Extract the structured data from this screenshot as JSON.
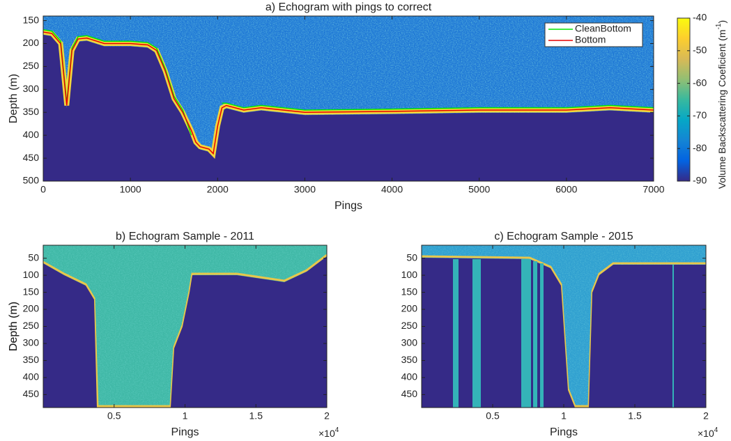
{
  "chart_data": [
    {
      "type": "line",
      "title": "a) Echogram with pings to correct",
      "xlabel": "Pings",
      "ylabel": "Depth (m)",
      "xlim": [
        0,
        7000
      ],
      "xticks": [
        0,
        1000,
        2000,
        3000,
        4000,
        5000,
        6000,
        7000
      ],
      "ylim": [
        140,
        500
      ],
      "yticks": [
        150,
        200,
        250,
        300,
        350,
        400,
        450,
        500
      ],
      "legend": "upper right",
      "x": [
        0,
        100,
        200,
        270,
        330,
        400,
        500,
        700,
        1000,
        1200,
        1300,
        1400,
        1500,
        1600,
        1700,
        1750,
        1800,
        1900,
        1950,
        2000,
        2050,
        2100,
        2300,
        2500,
        3000,
        4000,
        5000,
        6000,
        6500,
        7000
      ],
      "series": [
        {
          "name": "CleanBottom",
          "color": "#00e600",
          "values": [
            170,
            173,
            195,
            330,
            210,
            185,
            183,
            195,
            195,
            198,
            210,
            255,
            315,
            345,
            400,
            null,
            null,
            null,
            null,
            null,
            330,
            330,
            340,
            335,
            345,
            343,
            340,
            340,
            335,
            340
          ]
        },
        {
          "name": "Bottom",
          "color": "#e60000",
          "values": [
            175,
            178,
            200,
            335,
            215,
            190,
            188,
            200,
            200,
            203,
            215,
            260,
            320,
            350,
            390,
            415,
            425,
            430,
            440,
            380,
            340,
            335,
            345,
            340,
            350,
            348,
            345,
            345,
            340,
            345
          ]
        }
      ],
      "colorbar": {
        "label": "Volume Backscattering Coeficient (m",
        "label_power": "-1",
        "label_end": ")",
        "lim": [
          -90,
          -40
        ],
        "ticks": [
          -90,
          -80,
          -70,
          -60,
          -50,
          -40
        ]
      }
    },
    {
      "type": "heatmap",
      "title": "b) Echogram Sample - 2011",
      "xlabel": "Pings",
      "ylabel": "Depth (m)",
      "xlim": [
        0,
        20000
      ],
      "xticks": [
        {
          "value": 5000,
          "label": "0.5"
        },
        {
          "value": 10000,
          "label": "1"
        },
        {
          "value": 15000,
          "label": "1.5"
        },
        {
          "value": 20000,
          "label": "2"
        }
      ],
      "x_scale": "×10",
      "x_scale_power": "4",
      "ylim": [
        12,
        488
      ],
      "yticks": [
        50,
        100,
        150,
        200,
        250,
        300,
        350,
        400,
        450
      ]
    },
    {
      "type": "heatmap",
      "title": "c) Echogram Sample - 2015",
      "xlabel": "Pings",
      "ylabel": "Depth (m)",
      "xlim": [
        0,
        20000
      ],
      "xticks": [
        {
          "value": 5000,
          "label": "0.5"
        },
        {
          "value": 10000,
          "label": "1"
        },
        {
          "value": 15000,
          "label": "1.5"
        },
        {
          "value": 20000,
          "label": "2"
        }
      ],
      "x_scale": "×10",
      "x_scale_power": "4",
      "ylim": [
        12,
        488
      ],
      "yticks": [
        50,
        100,
        150,
        200,
        250,
        300,
        350,
        400,
        450
      ]
    }
  ]
}
